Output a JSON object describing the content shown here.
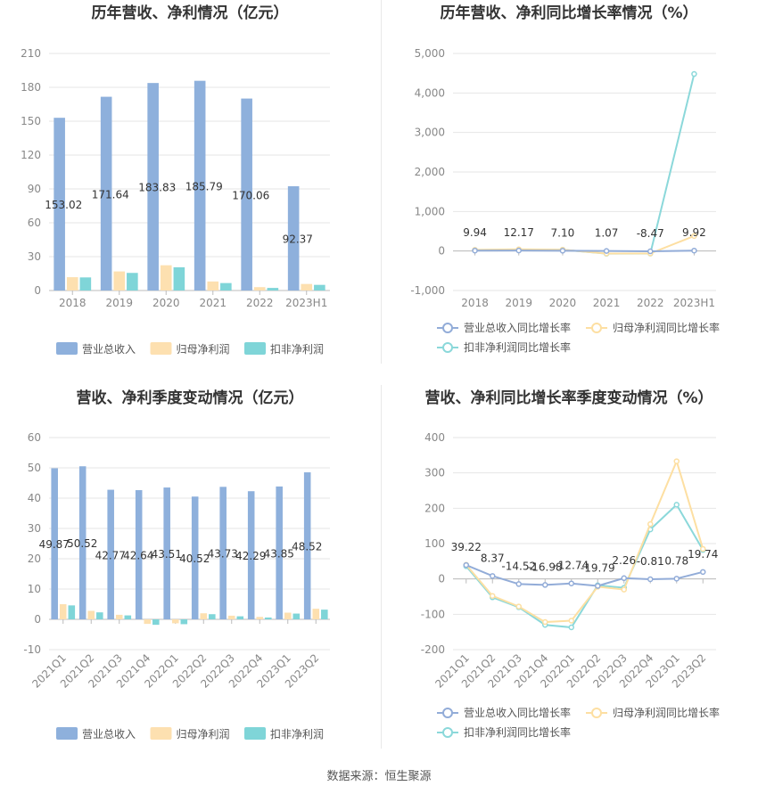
{
  "colors": {
    "revenue": "#8eb0dc",
    "net_profit": "#fde0b0",
    "deducted_profit": "#7fd5d8",
    "rev_growth_line": "#92acd8",
    "net_growth_line": "#fddfa2",
    "ded_growth_line": "#8bd8da",
    "title": "#333333",
    "axis_text": "#888888",
    "grid": "#e6e6e6"
  },
  "source": "数据来源：恒生聚源",
  "chart_data": [
    {
      "type": "bar",
      "title": "历年营收、净利情况（亿元）",
      "categories": [
        "2018",
        "2019",
        "2020",
        "2021",
        "2022",
        "2023H1"
      ],
      "ylim": [
        0,
        210
      ],
      "yticks": [
        0,
        30,
        60,
        90,
        120,
        150,
        180,
        210
      ],
      "series": [
        {
          "name": "营业总收入",
          "values": [
            153.02,
            171.64,
            183.83,
            185.79,
            170.06,
            92.37
          ]
        },
        {
          "name": "归母净利润",
          "values": [
            11.8,
            16.9,
            22.4,
            8.0,
            3.0,
            5.8
          ]
        },
        {
          "name": "扣非净利润",
          "values": [
            11.6,
            15.6,
            20.6,
            6.6,
            2.3,
            5.0
          ]
        }
      ],
      "data_labels": [
        "153.02",
        "171.64",
        "183.83",
        "185.79",
        "170.06",
        "92.37"
      ],
      "legend": "bottom",
      "grid": true
    },
    {
      "type": "line",
      "title": "历年营收、净利同比增长率情况（%）",
      "categories": [
        "2018",
        "2019",
        "2020",
        "2021",
        "2022",
        "2023H1"
      ],
      "ylim": [
        -1000,
        5000
      ],
      "yticks": [
        -1000,
        0,
        1000,
        2000,
        3000,
        4000,
        5000
      ],
      "ytick_labels": [
        "-1,000",
        "0",
        "1,000",
        "2,000",
        "3,000",
        "4,000",
        "5,000"
      ],
      "series": [
        {
          "name": "营业总收入同比增长率",
          "values": [
            9.94,
            12.17,
            7.1,
            1.07,
            -8.47,
            9.92
          ]
        },
        {
          "name": "归母净利润同比增长率",
          "values": [
            30,
            43,
            33,
            -64,
            -62,
            380
          ]
        },
        {
          "name": "扣非净利润同比增长率",
          "values": [
            25,
            35,
            32,
            -68,
            -65,
            4480
          ]
        }
      ],
      "data_labels": [
        "9.94",
        "12.17",
        "7.10",
        "1.07",
        "-8.47",
        "9.92"
      ],
      "legend": "bottom",
      "grid": true
    },
    {
      "type": "bar",
      "title": "营收、净利季度变动情况（亿元）",
      "categories": [
        "2021Q1",
        "2021Q2",
        "2021Q3",
        "2021Q4",
        "2022Q1",
        "2022Q2",
        "2022Q3",
        "2022Q4",
        "2023Q1",
        "2023Q2"
      ],
      "ylim": [
        -10,
        60
      ],
      "yticks": [
        -10,
        0,
        10,
        20,
        30,
        40,
        50,
        60
      ],
      "series": [
        {
          "name": "营业总收入",
          "values": [
            49.87,
            50.52,
            42.77,
            42.64,
            43.51,
            40.52,
            43.73,
            42.29,
            43.85,
            48.52
          ]
        },
        {
          "name": "归母净利润",
          "values": [
            5.0,
            2.8,
            1.5,
            -1.5,
            -1.3,
            2.0,
            1.2,
            0.8,
            2.2,
            3.5
          ]
        },
        {
          "name": "扣非净利润",
          "values": [
            4.6,
            2.3,
            1.3,
            -1.8,
            -1.6,
            1.7,
            1.0,
            0.6,
            1.9,
            3.2
          ]
        }
      ],
      "data_labels": [
        "49.87",
        "50.52",
        "42.77",
        "42.64",
        "43.51",
        "40.52",
        "43.73",
        "42.29",
        "43.85",
        "48.52"
      ],
      "legend": "bottom",
      "grid": true
    },
    {
      "type": "line",
      "title": "营收、净利同比增长率季度变动情况（%）",
      "categories": [
        "2021Q1",
        "2021Q2",
        "2021Q3",
        "2021Q4",
        "2022Q1",
        "2022Q2",
        "2022Q3",
        "2022Q4",
        "2023Q1",
        "2023Q2"
      ],
      "ylim": [
        -200,
        400
      ],
      "yticks": [
        -200,
        -100,
        0,
        100,
        200,
        300,
        400
      ],
      "series": [
        {
          "name": "营业总收入同比增长率",
          "values": [
            39.22,
            8.37,
            -14.52,
            -16.98,
            -12.74,
            -19.79,
            2.26,
            -0.81,
            0.78,
            19.74
          ]
        },
        {
          "name": "归母净利润同比增长率",
          "values": [
            40,
            -48,
            -78,
            -122,
            -118,
            -22,
            -30,
            155,
            333,
            85
          ]
        },
        {
          "name": "扣非净利润同比增长率",
          "values": [
            36,
            -52,
            -80,
            -130,
            -137,
            -18,
            -25,
            140,
            210,
            82
          ]
        }
      ],
      "data_labels": [
        "39.22",
        "8.37",
        "-14.52",
        "-16.98",
        "-12.74",
        "-19.79",
        "2.26",
        "-0.81",
        "0.78",
        "19.74"
      ],
      "legend": "bottom",
      "grid": true
    }
  ]
}
